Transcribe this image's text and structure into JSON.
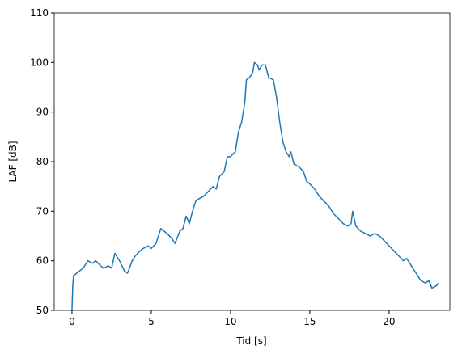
{
  "chart_data": {
    "type": "line",
    "x_label": "Tid [s]",
    "y_label": "LAF [dB]",
    "x": [
      0,
      0.05,
      0.1,
      0.3,
      0.5,
      0.7,
      1.0,
      1.3,
      1.5,
      1.8,
      2.0,
      2.3,
      2.5,
      2.7,
      3.0,
      3.3,
      3.5,
      3.8,
      4.0,
      4.3,
      4.5,
      4.8,
      5.0,
      5.3,
      5.6,
      5.8,
      6.0,
      6.3,
      6.5,
      6.8,
      7.0,
      7.2,
      7.4,
      7.6,
      7.8,
      8.0,
      8.3,
      8.6,
      8.9,
      9.1,
      9.3,
      9.6,
      9.8,
      10.0,
      10.3,
      10.5,
      10.7,
      10.9,
      11.0,
      11.2,
      11.4,
      11.5,
      11.7,
      11.8,
      12.0,
      12.2,
      12.4,
      12.7,
      12.9,
      13.1,
      13.3,
      13.5,
      13.7,
      13.8,
      14.0,
      14.3,
      14.6,
      14.8,
      15.0,
      15.3,
      15.6,
      15.9,
      16.2,
      16.5,
      16.8,
      17.1,
      17.4,
      17.6,
      17.7,
      17.9,
      18.2,
      18.5,
      18.8,
      19.1,
      19.4,
      19.7,
      20.0,
      20.3,
      20.6,
      20.9,
      21.1,
      21.4,
      21.7,
      22.0,
      22.3,
      22.5,
      22.7,
      23.0,
      23.1
    ],
    "series": [
      {
        "name": "LAF",
        "color": "#1f77b4",
        "values": [
          50,
          55,
          57,
          57.5,
          58,
          58.5,
          60,
          59.5,
          60,
          59,
          58.5,
          59,
          58.5,
          61.5,
          60,
          58,
          57.5,
          60,
          61,
          62,
          62.5,
          63,
          62.5,
          63.5,
          66.5,
          66,
          65.5,
          64.5,
          63.5,
          66,
          66.5,
          69,
          67.5,
          70,
          72,
          72.5,
          73,
          74,
          75,
          74.5,
          77,
          78,
          81,
          81,
          82,
          86,
          88,
          92,
          96.5,
          97,
          98,
          100,
          99.5,
          98.5,
          99.5,
          99.5,
          97,
          96.5,
          93,
          88,
          84,
          82,
          81,
          82,
          79.5,
          79,
          78,
          76,
          75.5,
          74.5,
          73,
          72,
          71,
          69.5,
          68.5,
          67.5,
          67,
          67.5,
          70,
          67,
          66,
          65.5,
          65,
          65.5,
          65,
          64,
          63,
          62,
          61,
          60,
          60.5,
          59,
          57.5,
          56,
          55.5,
          56,
          54.5,
          55,
          55.5
        ]
      }
    ],
    "xlim": [
      -1.12,
      23.83
    ],
    "xticks": [
      0,
      5,
      10,
      15,
      20
    ],
    "ylim": [
      50,
      110
    ],
    "yticks": [
      50,
      60,
      70,
      80,
      90,
      100,
      110
    ]
  }
}
